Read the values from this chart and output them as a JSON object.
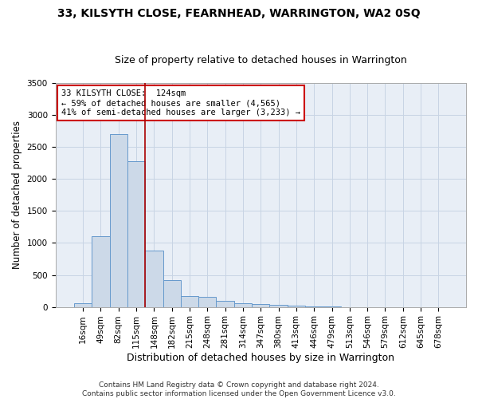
{
  "title1": "33, KILSYTH CLOSE, FEARNHEAD, WARRINGTON, WA2 0SQ",
  "title2": "Size of property relative to detached houses in Warrington",
  "xlabel": "Distribution of detached houses by size in Warrington",
  "ylabel": "Number of detached properties",
  "bar_color": "#ccd9e8",
  "bar_edge_color": "#6699cc",
  "grid_color": "#c8d4e4",
  "bg_color": "#e8eef6",
  "vline_color": "#aa0000",
  "vline_x": 3.5,
  "annotation_text": "33 KILSYTH CLOSE:  124sqm\n← 59% of detached houses are smaller (4,565)\n41% of semi-detached houses are larger (3,233) →",
  "annotation_box_color": "#cc0000",
  "categories": [
    "16sqm",
    "49sqm",
    "82sqm",
    "115sqm",
    "148sqm",
    "182sqm",
    "215sqm",
    "248sqm",
    "281sqm",
    "314sqm",
    "347sqm",
    "380sqm",
    "413sqm",
    "446sqm",
    "479sqm",
    "513sqm",
    "546sqm",
    "579sqm",
    "612sqm",
    "645sqm",
    "678sqm"
  ],
  "values": [
    55,
    1100,
    2700,
    2280,
    880,
    420,
    175,
    160,
    90,
    60,
    50,
    30,
    20,
    5,
    2,
    0,
    0,
    0,
    0,
    0,
    0
  ],
  "ylim": [
    0,
    3500
  ],
  "yticks": [
    0,
    500,
    1000,
    1500,
    2000,
    2500,
    3000,
    3500
  ],
  "footnote": "Contains HM Land Registry data © Crown copyright and database right 2024.\nContains public sector information licensed under the Open Government Licence v3.0.",
  "title1_fontsize": 10,
  "title2_fontsize": 9,
  "xlabel_fontsize": 9,
  "ylabel_fontsize": 8.5,
  "tick_fontsize": 7.5,
  "annot_fontsize": 7.5,
  "footnote_fontsize": 6.5
}
